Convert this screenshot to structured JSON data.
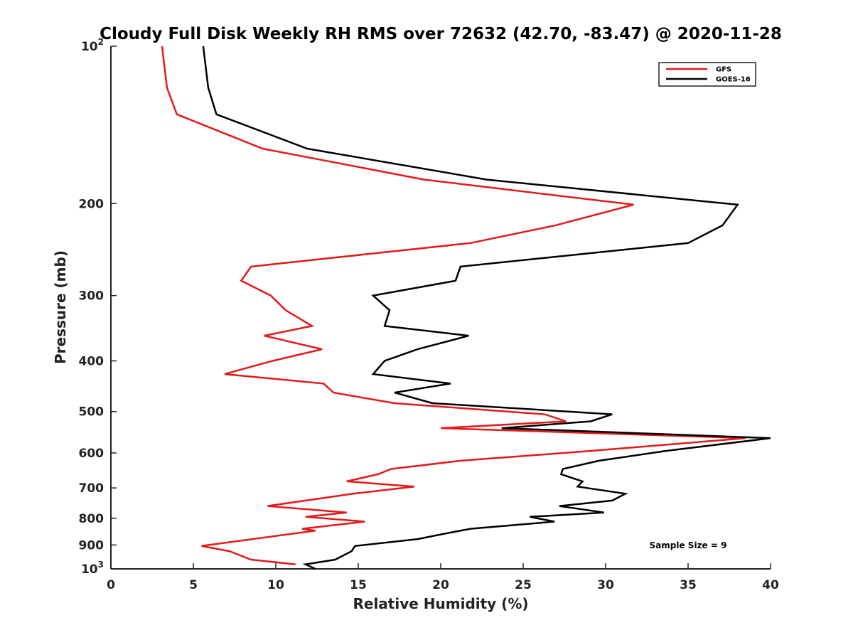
{
  "chart_data": {
    "type": "line",
    "title": "Cloudy Full Disk Weekly RH RMS over 72632 (42.70, -83.47) @ 2020-11-28",
    "xlabel": "Relative Humidity (%)",
    "ylabel": "Pressure (mb)",
    "xlim": [
      0,
      40
    ],
    "ylim": [
      1000,
      100
    ],
    "yscale": "log",
    "y_reversed": true,
    "grid": false,
    "legend_position": "top-right",
    "x_ticks": [
      0,
      5,
      10,
      15,
      20,
      25,
      30,
      35,
      40
    ],
    "y_ticks": [
      {
        "value": 100,
        "base": "10",
        "exp": "2"
      },
      {
        "value": 200,
        "label": "200"
      },
      {
        "value": 300,
        "label": "300"
      },
      {
        "value": 400,
        "label": "400"
      },
      {
        "value": 500,
        "label": "500"
      },
      {
        "value": 600,
        "label": "600"
      },
      {
        "value": 700,
        "label": "700"
      },
      {
        "value": 800,
        "label": "800"
      },
      {
        "value": 900,
        "label": "900"
      },
      {
        "value": 1000,
        "base": "10",
        "exp": "3"
      }
    ],
    "annotation": "Sample Size = 9",
    "series": [
      {
        "name": "GFS",
        "color": "#e41a1a",
        "points": [
          [
            3.1,
            100
          ],
          [
            3.4,
            120
          ],
          [
            4.0,
            135
          ],
          [
            9.2,
            157
          ],
          [
            19.0,
            180
          ],
          [
            31.7,
            201
          ],
          [
            27.0,
            220
          ],
          [
            21.8,
            238
          ],
          [
            8.5,
            264
          ],
          [
            7.9,
            281
          ],
          [
            9.7,
            300
          ],
          [
            10.6,
            320
          ],
          [
            12.2,
            343
          ],
          [
            9.3,
            358
          ],
          [
            12.8,
            380
          ],
          [
            9.8,
            400
          ],
          [
            6.9,
            424
          ],
          [
            12.9,
            442
          ],
          [
            13.5,
            460
          ],
          [
            17.2,
            482
          ],
          [
            26.3,
            506
          ],
          [
            27.6,
            522
          ],
          [
            20.0,
            538
          ],
          [
            38.5,
            562
          ],
          [
            29.0,
            595
          ],
          [
            21.2,
            621
          ],
          [
            17.0,
            644
          ],
          [
            16.2,
            659
          ],
          [
            14.3,
            680
          ],
          [
            18.4,
            696
          ],
          [
            14.7,
            718
          ],
          [
            9.5,
            758
          ],
          [
            14.3,
            780
          ],
          [
            11.8,
            795
          ],
          [
            15.4,
            812
          ],
          [
            11.6,
            838
          ],
          [
            12.4,
            845
          ],
          [
            5.5,
            904
          ],
          [
            7.2,
            925
          ],
          [
            8.5,
            960
          ],
          [
            11.2,
            980
          ]
        ]
      },
      {
        "name": "GOES-16",
        "color": "#000000",
        "points": [
          [
            5.6,
            100
          ],
          [
            5.9,
            120
          ],
          [
            6.4,
            135
          ],
          [
            11.9,
            157
          ],
          [
            22.8,
            180
          ],
          [
            38.0,
            201
          ],
          [
            37.1,
            220
          ],
          [
            35.0,
            238
          ],
          [
            21.2,
            264
          ],
          [
            20.9,
            281
          ],
          [
            15.9,
            300
          ],
          [
            16.9,
            320
          ],
          [
            16.6,
            343
          ],
          [
            21.7,
            358
          ],
          [
            18.6,
            380
          ],
          [
            16.6,
            400
          ],
          [
            15.9,
            424
          ],
          [
            20.6,
            442
          ],
          [
            17.2,
            460
          ],
          [
            19.5,
            482
          ],
          [
            30.4,
            506
          ],
          [
            29.1,
            522
          ],
          [
            23.7,
            538
          ],
          [
            40.0,
            562
          ],
          [
            33.6,
            595
          ],
          [
            29.6,
            621
          ],
          [
            27.4,
            644
          ],
          [
            27.3,
            659
          ],
          [
            28.6,
            680
          ],
          [
            28.3,
            696
          ],
          [
            31.2,
            718
          ],
          [
            30.4,
            740
          ],
          [
            27.2,
            758
          ],
          [
            29.9,
            780
          ],
          [
            25.4,
            795
          ],
          [
            26.9,
            812
          ],
          [
            21.8,
            838
          ],
          [
            20.1,
            858
          ],
          [
            18.6,
            877
          ],
          [
            14.8,
            904
          ],
          [
            14.6,
            925
          ],
          [
            13.6,
            960
          ],
          [
            11.8,
            980
          ],
          [
            12.4,
            1000
          ]
        ]
      }
    ]
  }
}
